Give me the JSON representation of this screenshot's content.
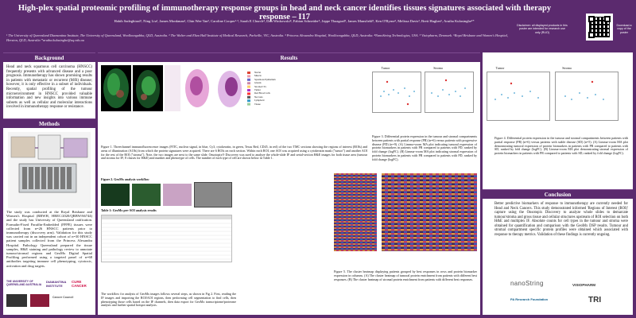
{
  "header": {
    "title": "High-plex spatial proteomic profiling of immunotherapy response groups in head and neck cancer identifies tissues signatures associated with therapy response – I17",
    "authors": "Habib Sadeghirad¹, Ning Liu¹, James Monkman¹, Chin Wee Tan², Caroline Cooper¹·³, Sarah E Church⁴, Dan Winkowski⁴, Fabian Schneider⁵, Jeppe Thaagard⁵, James Mansfield⁵, Ken O'Byrne³, Melissa Davis², Brett Hughes⁶, Arutha Kulasinghe¹*",
    "affiliations": "¹ The University of Queensland Diamantina Institute, The University of Queensland, Woolloongabba, QLD, Australia. ² The Walter and Eliza Hall Institute of Medical Research, Parkville, VIC, Australia. ³ Princess Alexandra Hospital, Woolloongabba, QLD, Australia. ⁴NanoString Technologies, USA. ⁵ Visiopharm, Denmark. ⁶Royal Brisbane and Women's Hospital, Herston, QLD, Australia *arutha.kulasinghe@uq.edu.au",
    "qr_left_note": "Disclaimer: all displayed products in this poster are intended for research use only (RUO)",
    "qr_right_note": "Download a copy of the poster"
  },
  "background": {
    "heading": "Background",
    "text": "Head and neck squamous cell carcinoma (HNSCC) frequently presents with advanced disease and a poor prognosis. Immunotherapy has shown promising results in patients with metastatic or recurrent (M/R) disease; however, it is only effective in a subset of individuals. Recently, spatial profiling of the tumour microenvironment in HNSCC provided valuable information and new insights into various immune subsets as well as cellular and molecular interactions involved in immunotherapy response or resistance."
  },
  "methods": {
    "heading": "Methods",
    "text": "The study was conducted at the Royal Brisbane and Women's Hospital (RBWH, HREC/2020/QRBW/66744) and the study has University of Queensland ratification. Formalin-Fixed Paraffin-Embedded (FFPE) tissues were collected from n=26 HNSCC patients prior to immunotherapy (discovery arm). Validation for this study was carried out in an independent cohort of n=30 HNSCC patient samples collected from the Princess Alexandra Hospital. Pathology Queensland prepared the tissue samples, H&E staining and pathology review to annotate tumour/stromal regions and GeoMx Digital Spatial Profiling performed using a targeted panel of n=68 antibodies targeting immune cell phenotyping, cytotoxic, activation and drug targets."
  },
  "results": {
    "heading": "Results",
    "fig1_caption": "Figure 1. Threechannel immunofluorescence images (FITC, nuclear signal, in blue, Cy3, cytokeratin, in green, Texas Red, CD45, in red) of the two TMC sections showing the regions of interest (ROIs) and areas of illumination (AOIs) from which the protein signatures were acquired. There are 6 ROIs on each section. Within each ROI, one AOI was acquired using a cytokeratin mask (\"tumor\") and another AOI for the rest of the ROI (\"stroma\"). Note, the two images are next to the same slide. Onsotopix® Discovery was used to analyze the whole-slide IF and serial-section H&E images for both tissue area (tumour and stroma for IF; 8 classes for H&E) and number and phenotype of cells. The number of each type of cell are shown below in Table 1.",
    "fig2_label": "Figure 2. GeoMx analysis workflow",
    "table1_label": "Table 1: GeoMx per-AOI analysis results",
    "fig2_caption": "The workflow for analysis of GeoMx images follows several steps, as shown in Fig 2. First, reading the IF images and importing the ROI/AOI regions, then performing cell segmentation to find cells, then phenotyping those cells based on the IF channels, then data export for GeoMx transcriptome/proteome analysis and further spatial hotspot analysis.",
    "fig3_caption": "Figure 3. Differential protein expression in the tumour and stromal compartments between patients with partial response (PR) (n=6) versus patients with progressive disease (PD) (n=9). (A) Limma-voom MA plot indicating tumoral expression of protein biomarkers in patients with PR compared to patients with PD, ranked by fold change (logFC). (B) Limma-voom MA plot indicating stromal expression of protein biomarkers in patients with PR compared to patients with PD, ranked by fold change (logFC).",
    "fig4_caption": "Figure 4. Differential protein expression in the tumour and stromal compartments between patients with partial response (PR) (n=6) versus patients with stable disease (SD) (n=5). (A) Limma-voom MA plot demonstrating tumoral expression of protein biomarkers in patients with PR compared to patients with SD, ranked by fold change (logFC). (B) Limma-voom MA plot demonstrating stromal expression of protein biomarkers in patients with PR compared to patients with SD, ranked by fold change (logFC).",
    "fig5_caption": "Figure 5. The cluster heatmap displaying patients grouped by best responses in rows and protein biomarker expression in columns. (A) The cluster heatmap of tumoral protein enrichment from patients with different best responses. (B) The cluster heatmap of stromal protein enrichment from patients with different best responses.",
    "panel_tumor": "Tumor",
    "panel_stroma": "Stroma",
    "legend_items": [
      "Nuclei",
      "Muscle",
      "Squamous Epithelium",
      "Glands",
      "Stroma/CTx",
      "Tumor",
      "Red Blood Cells",
      "Necrosis",
      "Lymphoid",
      "Tissue"
    ]
  },
  "conclusion": {
    "heading": "Conclusion",
    "text": "Better predictive biomarkers of response to immunotherapy are currently needed for Head and Neck Cancers. This study demonstrated informed 'Regions of Interest (ROI)' capture using the Onsotopix Discovery to analyze whole slides to demarcate tumour/stroma and gross tissue and cellular structures upstream of ROI selection on both H&E and multiplex IF. Absolute counts for cell types in the tumour and stroma were obtained for quantification and comparison with the GeoMx DSP results. Tumour and stromal compartment specific protein profiles were obtained which associated with response to therapy metrics. Validation of these findings is currently ongoing."
  },
  "logos": {
    "uq": "THE UNIVERSITY OF QUEENSLAND AUSTRALIA",
    "diamantina": "DIAMANTINA INSTITUTE",
    "cure_cancer": "CURE CANCER",
    "nanostring": "nanoString",
    "visiopharm": "VISIOPHARM",
    "pa_foundation": "PA Research Foundation",
    "tri": "TRI",
    "wehi": "Cancer Council"
  },
  "colors": {
    "brand_purple": "#5b2a6e",
    "heading_bar": "#5b2a6e"
  }
}
